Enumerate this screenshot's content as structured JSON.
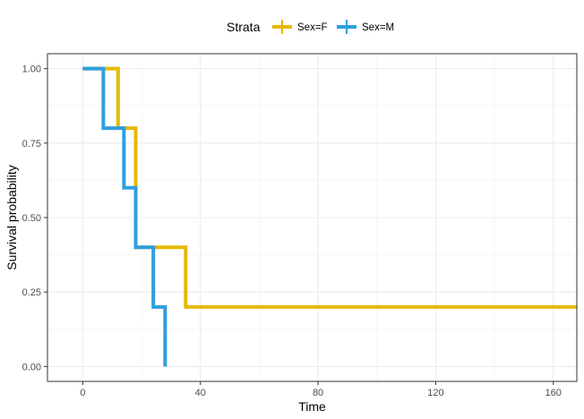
{
  "chart_data": {
    "type": "line",
    "step": true,
    "xlabel": "Time",
    "ylabel": "Survival probability",
    "xlim": [
      -12,
      168
    ],
    "ylim": [
      -0.05,
      1.05
    ],
    "xticks": [
      0,
      40,
      80,
      120,
      160
    ],
    "yticks": [
      0,
      0.25,
      0.5,
      0.75,
      1.0
    ],
    "ytick_labels": [
      "0.00",
      "0.25",
      "0.50",
      "0.75",
      "1.00"
    ],
    "grid": true,
    "legend": {
      "title": "Strata",
      "placement": "top"
    },
    "series": [
      {
        "name": "Sex=F",
        "color": "#E7B800",
        "x": [
          0,
          12,
          18,
          35,
          168
        ],
        "y": [
          1.0,
          0.8,
          0.4,
          0.2,
          0.2
        ]
      },
      {
        "name": "Sex=M",
        "color": "#2E9FDF",
        "x": [
          0,
          7,
          14,
          18,
          24,
          28
        ],
        "y": [
          1.0,
          0.8,
          0.6,
          0.4,
          0.2,
          0.0
        ]
      }
    ]
  }
}
